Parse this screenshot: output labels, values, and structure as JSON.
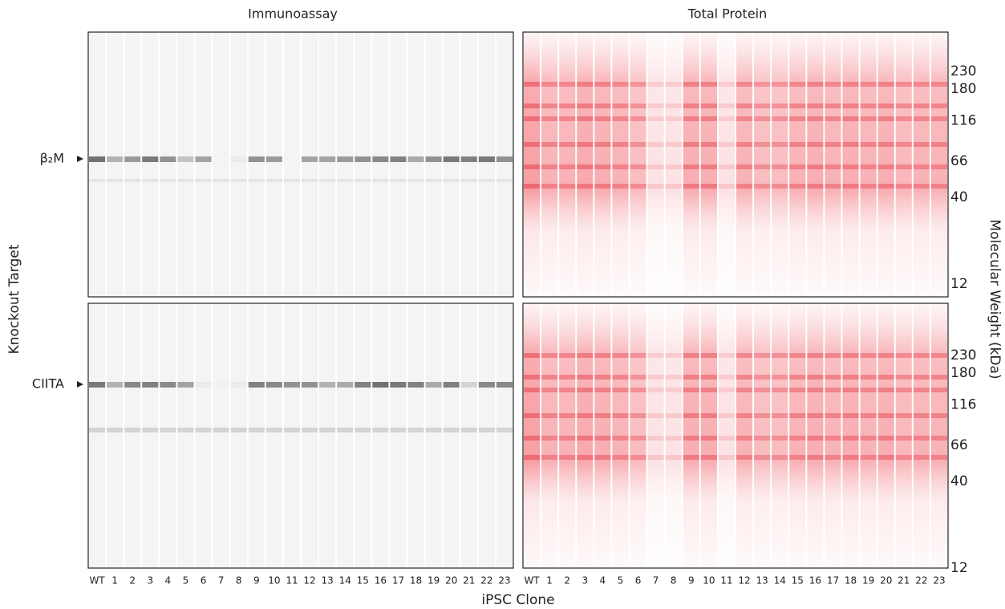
{
  "panels": {
    "left": {
      "title": "Immunoassay"
    },
    "right": {
      "title": "Total Protein"
    }
  },
  "rows": [
    {
      "label": "β₂M"
    },
    {
      "label": "CIITA"
    }
  ],
  "lanes": [
    "WT",
    "1",
    "2",
    "3",
    "4",
    "5",
    "6",
    "7",
    "8",
    "9",
    "10",
    "11",
    "12",
    "13",
    "14",
    "15",
    "16",
    "17",
    "18",
    "19",
    "20",
    "21",
    "22",
    "23"
  ],
  "molecular_weights": [
    230,
    180,
    116,
    66,
    40,
    12
  ],
  "x_label": "iPSC Clone",
  "y_left_label": "Knockout Target",
  "y_right_label": "Molecular Weight (kDa)"
}
